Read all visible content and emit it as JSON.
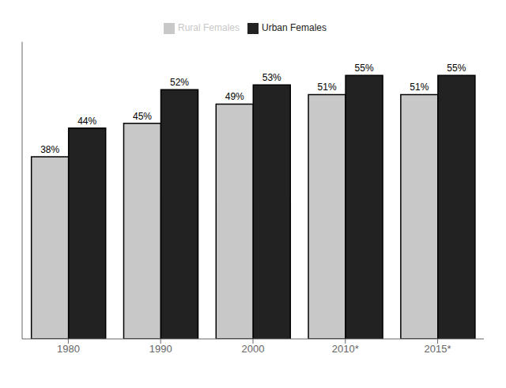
{
  "chart_data": {
    "type": "bar",
    "categories": [
      "1980",
      "1990",
      "2000",
      "2010*",
      "2015*"
    ],
    "series": [
      {
        "name": "Rural Females",
        "color": "#c8c8c8",
        "values": [
          38,
          45,
          49,
          51,
          51
        ],
        "value_labels": [
          "38%",
          "45%",
          "49%",
          "51%",
          "51%"
        ]
      },
      {
        "name": "Urban Females",
        "color": "#222222",
        "values": [
          44,
          52,
          53,
          55,
          55
        ],
        "value_labels": [
          "44%",
          "52%",
          "53%",
          "55%",
          "55%"
        ]
      }
    ],
    "ylim": [
      0,
      62
    ],
    "legend": "top",
    "data_labels": true,
    "grid": false,
    "tick_labels": "x"
  }
}
